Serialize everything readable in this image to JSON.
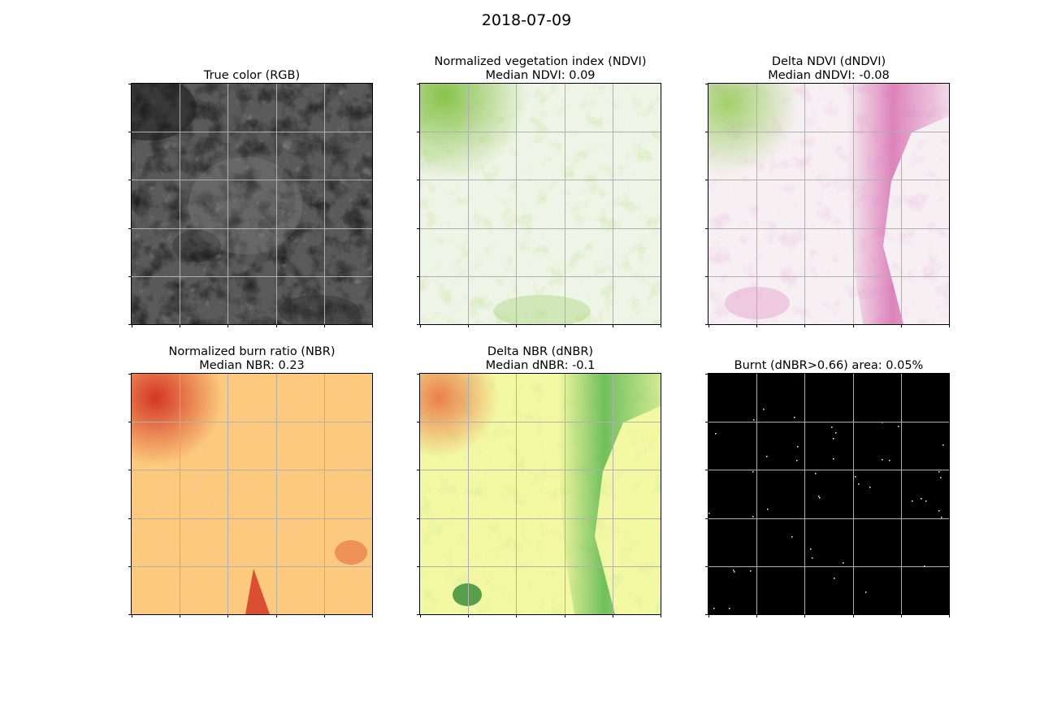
{
  "figure": {
    "title": "2018-07-09"
  },
  "panels": [
    {
      "id": "rgb",
      "title_line1": "True color (RGB)",
      "title_line2": "",
      "palette": "gray"
    },
    {
      "id": "ndvi",
      "title_line1": "Normalized vegetation index (NDVI)",
      "title_line2": "Median NDVI: 0.09",
      "palette": "light-green"
    },
    {
      "id": "dndvi",
      "title_line1": "Delta NDVI (dNDVI)",
      "title_line2": "Median dNDVI: -0.08",
      "palette": "pink-green"
    },
    {
      "id": "nbr",
      "title_line1": "Normalized burn ratio (NBR)",
      "title_line2": "Median NBR: 0.23",
      "palette": "orange-red"
    },
    {
      "id": "dnbr",
      "title_line1": "Delta NBR (dNBR)",
      "title_line2": "Median dNBR: -0.1",
      "palette": "yellow-green"
    },
    {
      "id": "burnt",
      "title_line1": "Burnt (dNBR>0.66) area: 0.05%",
      "title_line2": "",
      "palette": "black-white"
    }
  ],
  "colors": {
    "grid": "#b0b0b0",
    "rgb_base": "#555555",
    "ndvi_base": "#eef4e6",
    "ndvi_green": "#7cbd3a",
    "dndvi_base": "#f6f0f3",
    "dndvi_pink": "#d45fa9",
    "dndvi_green": "#8cc84a",
    "nbr_base": "#fcca7c",
    "nbr_red": "#d22e1f",
    "dnbr_base": "#f3f8a2",
    "dnbr_green": "#4fb24b",
    "dnbr_orange": "#ea6a3c",
    "burnt_base": "#000000",
    "burnt_dot": "#ffffff"
  }
}
